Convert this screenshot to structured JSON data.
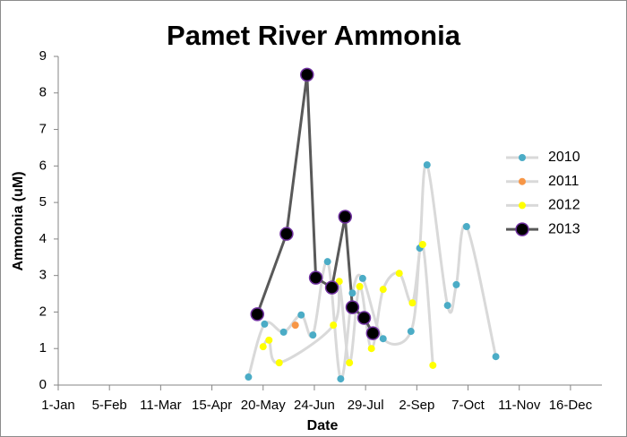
{
  "chart_data": {
    "type": "line",
    "title": "Pamet River Ammonia",
    "x_label": "Date",
    "y_label": "Ammonia (uM)",
    "xlim": [
      1,
      372
    ],
    "ylim": [
      0,
      9
    ],
    "xticks": [
      {
        "value": 1,
        "label": "1-Jan"
      },
      {
        "value": 36,
        "label": "5-Feb"
      },
      {
        "value": 71,
        "label": "11-Mar"
      },
      {
        "value": 106,
        "label": "15-Apr"
      },
      {
        "value": 141,
        "label": "20-May"
      },
      {
        "value": 176,
        "label": "24-Jun"
      },
      {
        "value": 211,
        "label": "29-Jul"
      },
      {
        "value": 246,
        "label": "2-Sep"
      },
      {
        "value": 281,
        "label": "7-Oct"
      },
      {
        "value": 316,
        "label": "11-Nov"
      },
      {
        "value": 351,
        "label": "16-Dec"
      }
    ],
    "yticks": [
      0,
      1,
      2,
      3,
      4,
      5,
      6,
      7,
      8,
      9
    ],
    "grid": false,
    "legend": "right",
    "series": [
      {
        "name": "2010",
        "color": "#4bacc6",
        "line_color": "#d9d9d9",
        "smooth": true,
        "marker_size": 4,
        "x": [
          131,
          142,
          155,
          167,
          175,
          185,
          194,
          202,
          209,
          223,
          242,
          248,
          253,
          267,
          273,
          280,
          300
        ],
        "values": [
          0.22,
          1.67,
          1.45,
          1.92,
          1.37,
          3.38,
          0.17,
          2.52,
          2.92,
          1.27,
          1.47,
          3.75,
          6.03,
          2.18,
          2.75,
          4.34,
          0.78
        ]
      },
      {
        "name": "2011",
        "color": "#f79646",
        "line_color": "#d9d9d9",
        "smooth": true,
        "marker_size": 4,
        "x": [
          163
        ],
        "values": [
          1.64
        ]
      },
      {
        "name": "2012",
        "color": "#ffff00",
        "line_color": "#d9d9d9",
        "smooth": true,
        "marker_size": 4,
        "x": [
          141,
          145,
          152,
          189,
          193,
          200,
          207,
          215,
          223,
          234,
          243,
          250,
          257
        ],
        "values": [
          1.05,
          1.23,
          0.61,
          1.64,
          2.84,
          0.61,
          2.7,
          1.0,
          2.62,
          3.06,
          2.25,
          3.85,
          0.54
        ]
      },
      {
        "name": "2013",
        "color": "#000000",
        "line_color": "#595959",
        "smooth": false,
        "marker_size": 7,
        "marker_edge": "#7030a0",
        "x": [
          137,
          157,
          171,
          177,
          188,
          197,
          202,
          210,
          216
        ],
        "values": [
          1.94,
          4.14,
          8.5,
          2.94,
          2.67,
          4.61,
          2.13,
          1.84,
          1.42
        ]
      }
    ]
  }
}
